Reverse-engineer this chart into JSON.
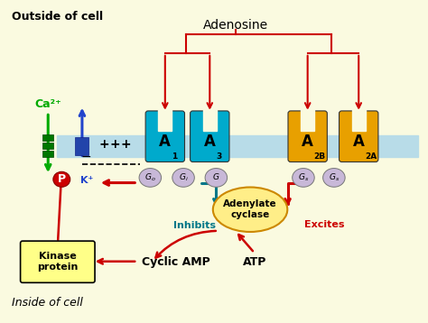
{
  "bg_color": "#FAFAE0",
  "outside_text": "Outside of cell",
  "inside_text": "Inside of cell",
  "adenosine_label": "Adenosine",
  "ca_label": "Ca²⁺",
  "k_label": "K⁺",
  "inhibits_label": "Inhibits",
  "excites_label": "Excites",
  "adenylate_label": "Adenylate\ncyclase",
  "cyclic_amp_label": "Cyclic AMP",
  "atp_label": "ATP",
  "kinase_label": "Kinase\nprotein",
  "p_label": "P",
  "membrane_color": "#B8DCE8",
  "receptor_cyan_color": "#00AACC",
  "receptor_orange_color": "#E8A000",
  "g_protein_color": "#C8B8D8",
  "arrow_red": "#CC0000",
  "arrow_cyan": "#007788",
  "ca_color": "#00AA00",
  "k_color": "#2244CC",
  "p_color": "#CC0000",
  "kinase_box_color": "#FFFF88",
  "adenylate_color": "#FFEE88",
  "green_chan_color": "#007700",
  "blue_chan_color": "#2244AA"
}
